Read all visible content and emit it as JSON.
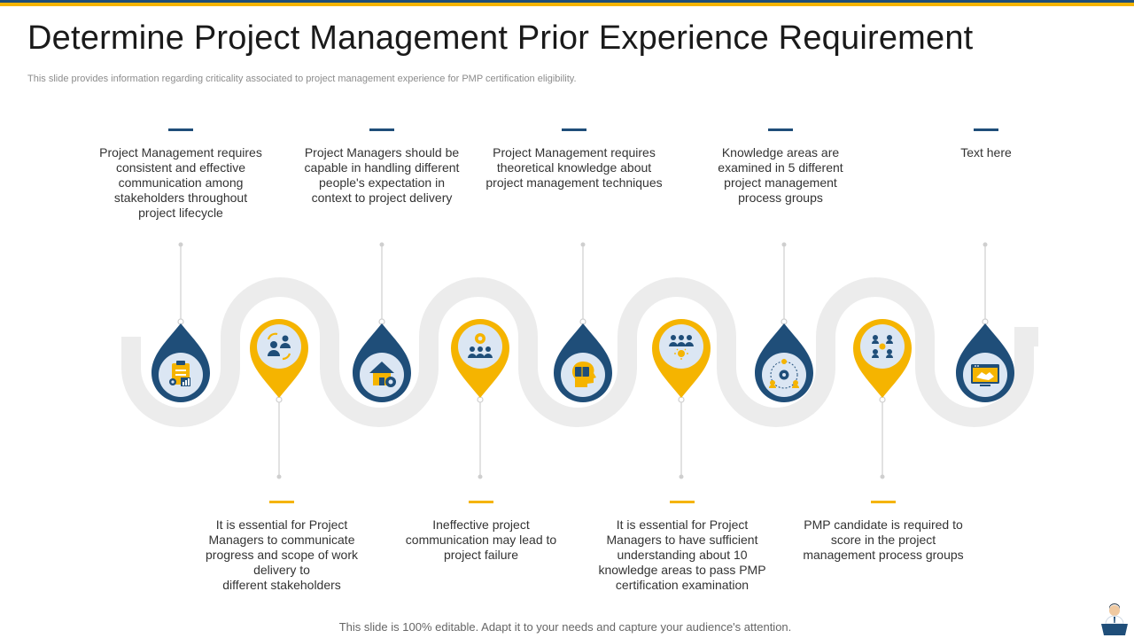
{
  "header": {
    "title": "Determine Project Management Prior Experience Requirement",
    "subtitle": "This slide provides information regarding criticality associated to project management experience for PMP  certification eligibility."
  },
  "colors": {
    "navy": "#1f4e79",
    "gold": "#f5b400",
    "track": "#ececec",
    "icon_circle": "#dbe6f3",
    "icon_navy": "#1f4e79",
    "icon_gold": "#f5b400"
  },
  "top_items": [
    {
      "text": "Project Management requires\nconsistent and effective\ncommunication among\nstakeholders throughout\nproject lifecycle",
      "icon": "clipboard-chart-icon"
    },
    {
      "text": "Project Managers should be\ncapable in handling different\npeople's expectation in\ncontext to project delivery",
      "icon": "house-gear-icon"
    },
    {
      "text": "Project Management requires\ntheoretical knowledge about\nproject management techniques",
      "icon": "head-book-icon"
    },
    {
      "text": "Knowledge areas are\nexamined  in 5 different\nproject management\nprocess groups",
      "icon": "team-gear-network-icon"
    },
    {
      "text": "Text here",
      "icon": "handshake-screen-icon"
    }
  ],
  "bottom_items": [
    {
      "text": "It is essential for Project\nManagers to communicate\nprogress and scope of work\ndelivery to\ndifferent stakeholders",
      "icon": "people-exchange-icon"
    },
    {
      "text": "Ineffective project\ncommunication may lead to\nproject failure",
      "icon": "team-gear-icon"
    },
    {
      "text": "It is essential for Project\nManagers to have sufficient\nunderstanding about 10\nknowledge areas to pass PMP\ncertification examination",
      "icon": "team-idea-icon"
    },
    {
      "text": "PMP candidate is required to\nscore in the project\nmanagement process groups",
      "icon": "team-grid-icon"
    }
  ],
  "footer": {
    "note": "This slide is 100% editable. Adapt it to your needs and capture your audience's attention."
  }
}
